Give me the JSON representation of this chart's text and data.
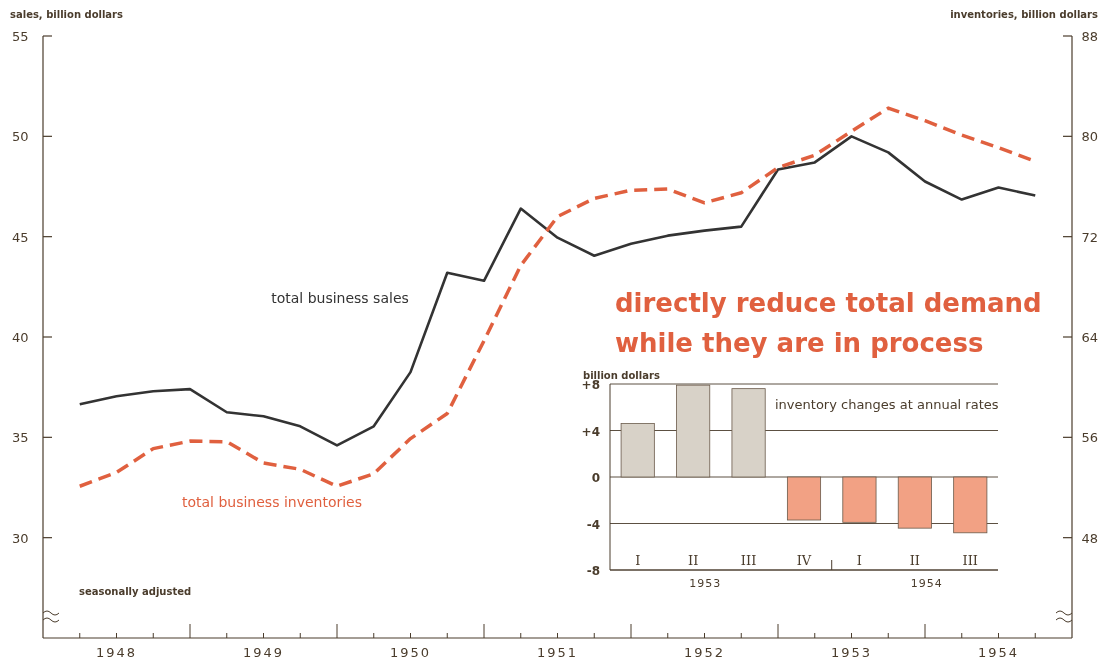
{
  "chart_data": [
    {
      "type": "line",
      "ylabel": "sales, billion dollars",
      "y2label": "inventories, billion dollars",
      "xlim": [
        1948,
        1955
      ],
      "ylim": [
        25,
        55
      ],
      "yticks": [
        30,
        35,
        40,
        45,
        50,
        55
      ],
      "y2lim": [
        40,
        88
      ],
      "y2ticks": [
        48,
        56,
        64,
        72,
        80,
        88
      ],
      "xticks": [
        {
          "value": 1948.25,
          "label": null
        },
        {
          "value": 1948.5,
          "label": "1948"
        },
        {
          "value": 1948.75,
          "label": null
        },
        {
          "value": 1949,
          "label": null
        },
        {
          "value": 1949.25,
          "label": null
        },
        {
          "value": 1949.5,
          "label": "1949"
        },
        {
          "value": 1949.75,
          "label": null
        },
        {
          "value": 1950,
          "label": null
        },
        {
          "value": 1950.25,
          "label": null
        },
        {
          "value": 1950.5,
          "label": "1950"
        },
        {
          "value": 1950.75,
          "label": null
        },
        {
          "value": 1951,
          "label": null
        },
        {
          "value": 1951.25,
          "label": null
        },
        {
          "value": 1951.5,
          "label": "1951"
        },
        {
          "value": 1951.75,
          "label": null
        },
        {
          "value": 1952,
          "label": null
        },
        {
          "value": 1952.25,
          "label": null
        },
        {
          "value": 1952.5,
          "label": "1952"
        },
        {
          "value": 1952.75,
          "label": null
        },
        {
          "value": 1953,
          "label": null
        },
        {
          "value": 1953.25,
          "label": null
        },
        {
          "value": 1953.5,
          "label": "1953"
        },
        {
          "value": 1953.75,
          "label": null
        },
        {
          "value": 1954,
          "label": null
        },
        {
          "value": 1954.25,
          "label": null
        },
        {
          "value": 1954.5,
          "label": "1954"
        },
        {
          "value": 1954.75,
          "label": null
        }
      ],
      "x": [
        1948.25,
        1948.5,
        1948.75,
        1949,
        1949.25,
        1949.5,
        1949.75,
        1950,
        1950.25,
        1950.5,
        1950.75,
        1951,
        1951.25,
        1951.5,
        1951.75,
        1952,
        1952.25,
        1952.5,
        1952.75,
        1953,
        1953.25,
        1953.5,
        1953.75,
        1954,
        1954.25,
        1954.5,
        1954.75
      ],
      "series": [
        {
          "name": "total business sales",
          "color": "#333333",
          "line_style": "solid",
          "values": [
            36.65,
            37.05,
            37.3,
            37.4,
            36.25,
            36.05,
            35.55,
            34.6,
            35.55,
            38.25,
            43.2,
            42.8,
            46.4,
            44.95,
            44.05,
            44.65,
            45.05,
            45.3,
            45.5,
            48.35,
            48.7,
            50.0,
            49.2,
            47.75,
            46.85,
            47.45,
            47.05
          ]
        },
        {
          "name": "total business inventories",
          "color": "#e0603f",
          "line_style": "dashed",
          "axis": "y2",
          "values": [
            52.1,
            53.2,
            55.1,
            55.7,
            55.65,
            53.95,
            53.45,
            52.1,
            53.1,
            55.9,
            57.9,
            63.7,
            69.7,
            73.6,
            75.05,
            75.7,
            75.8,
            74.7,
            75.5,
            77.5,
            78.5,
            80.4,
            82.25,
            81.25,
            80.1,
            79.1,
            78.0
          ]
        }
      ],
      "annotations": [
        "directly reduce total demand while they are in process",
        "seasonally adjusted"
      ]
    },
    {
      "type": "bar",
      "title": "inventory changes at annual rates",
      "ylabel": "billion dollars",
      "categories": [
        "I",
        "II",
        "III",
        "IV",
        "I",
        "II",
        "III"
      ],
      "values": [
        4.6,
        7.9,
        7.6,
        -3.7,
        -3.9,
        -4.4,
        -4.8
      ],
      "colors": [
        "#d8d2c8",
        "#d8d2c8",
        "#d8d2c8",
        "#f2a184",
        "#f2a184",
        "#f2a184",
        "#f2a184"
      ],
      "ylim": [
        -8,
        8
      ],
      "yticks": [
        {
          "value": -8,
          "label": "-8"
        },
        {
          "value": -4,
          "label": "-4"
        },
        0,
        {
          "value": 4,
          "label": "+4"
        },
        {
          "value": 8,
          "label": "+8"
        }
      ],
      "grid": "y",
      "annotations": [
        "1953",
        "1954"
      ]
    }
  ]
}
